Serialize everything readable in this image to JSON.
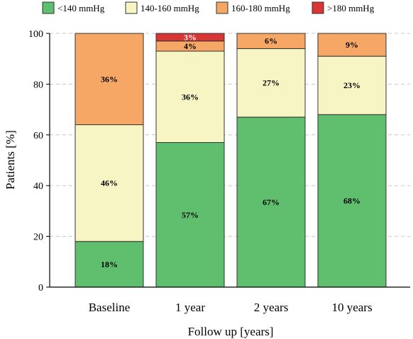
{
  "chart_data": {
    "type": "bar",
    "stacked": true,
    "categories": [
      "Baseline",
      "1 year",
      "2 years",
      "10 years"
    ],
    "series": [
      {
        "name": "<140 mmHg",
        "color": "#60bf6e",
        "values": [
          18,
          57,
          67,
          68
        ],
        "labels": [
          "18%",
          "57%",
          "67%",
          "68%"
        ]
      },
      {
        "name": "140-160 mmHg",
        "color": "#f7f5c4",
        "values": [
          46,
          36,
          27,
          23
        ],
        "labels": [
          "46%",
          "36%",
          "27%",
          "23%"
        ]
      },
      {
        "name": "160-180 mmHg",
        "color": "#f6a766",
        "values": [
          36,
          4,
          6,
          9
        ],
        "labels": [
          "36%",
          "4%",
          "6%",
          "9%"
        ]
      },
      {
        "name": ">180 mmHg",
        "color": "#d83535",
        "values": [
          0,
          3,
          0,
          0
        ],
        "labels": [
          "",
          "3%",
          "",
          ""
        ]
      }
    ],
    "xlabel": "Follow up [years]",
    "ylabel": "Patients [%]",
    "ylim": [
      0,
      100
    ],
    "yticks": [
      0,
      20,
      40,
      60,
      80,
      100
    ],
    "grid": "horizontal dashed",
    "legend_position": "top"
  }
}
